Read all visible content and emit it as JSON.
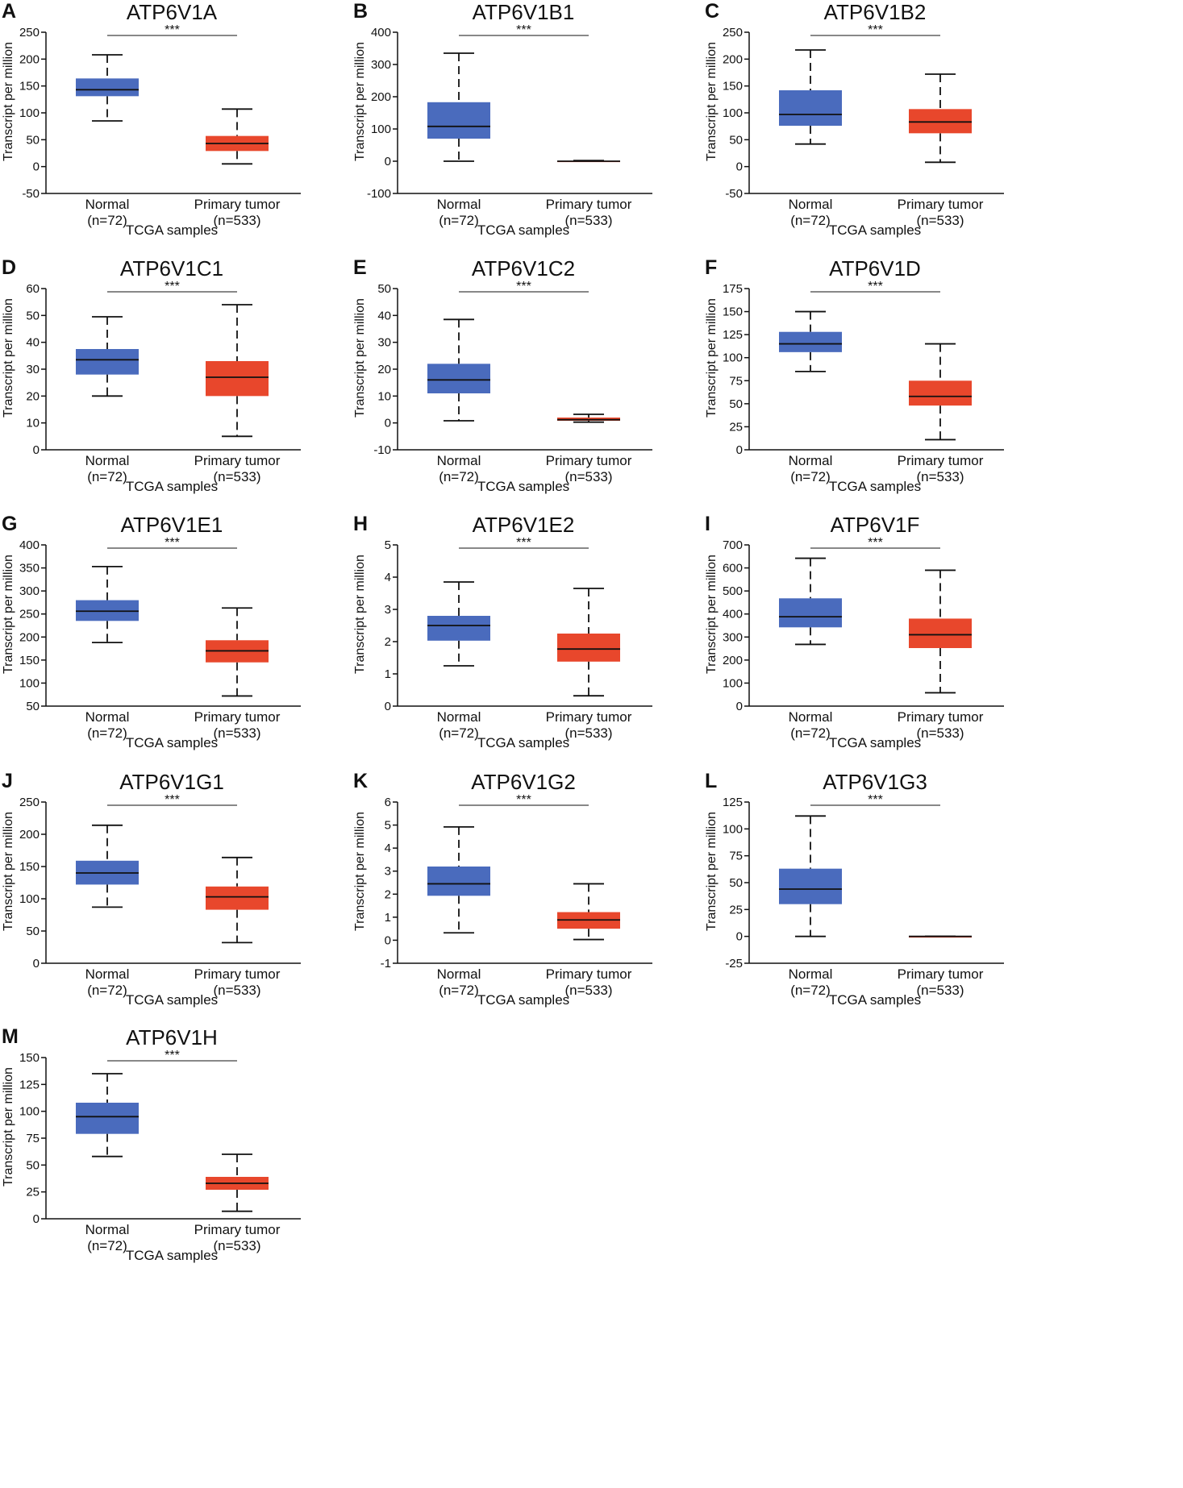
{
  "colors": {
    "normal": "#4a6bbd",
    "tumor": "#e8472c",
    "axis": "#111111"
  },
  "common": {
    "ylabel": "Transcript per million",
    "xlabel": "TCGA samples",
    "significance": "***",
    "categories": [
      {
        "name": "Normal",
        "n": "(n=72)"
      },
      {
        "name": "Primary tumor",
        "n": "(n=533)"
      }
    ]
  },
  "chart_data": [
    {
      "type": "box",
      "panel": "A",
      "title": "ATP6V1A",
      "ylim": [
        -50,
        250
      ],
      "ticks": [
        -50,
        0,
        50,
        100,
        150,
        200,
        250
      ],
      "series": [
        {
          "name": "Normal",
          "whisker_low": 85,
          "q1": 131,
          "median": 143,
          "q3": 164,
          "whisker_high": 208
        },
        {
          "name": "Primary tumor",
          "whisker_low": 5,
          "q1": 29,
          "median": 43,
          "q3": 57,
          "whisker_high": 107
        }
      ]
    },
    {
      "type": "box",
      "panel": "B",
      "title": "ATP6V1B1",
      "ylim": [
        -100,
        400
      ],
      "ticks": [
        -100,
        0,
        100,
        200,
        300,
        400
      ],
      "series": [
        {
          "name": "Normal",
          "whisker_low": 0,
          "q1": 70,
          "median": 108,
          "q3": 183,
          "whisker_high": 335
        },
        {
          "name": "Primary tumor",
          "whisker_low": 0,
          "q1": 0,
          "median": 0,
          "q3": 1,
          "whisker_high": 2
        }
      ]
    },
    {
      "type": "box",
      "panel": "C",
      "title": "ATP6V1B2",
      "ylim": [
        -50,
        250
      ],
      "ticks": [
        -50,
        0,
        50,
        100,
        150,
        200,
        250
      ],
      "series": [
        {
          "name": "Normal",
          "whisker_low": 42,
          "q1": 76,
          "median": 97,
          "q3": 142,
          "whisker_high": 217
        },
        {
          "name": "Primary tumor",
          "whisker_low": 8,
          "q1": 62,
          "median": 83,
          "q3": 107,
          "whisker_high": 172
        }
      ]
    },
    {
      "type": "box",
      "panel": "D",
      "title": "ATP6V1C1",
      "ylim": [
        0,
        60
      ],
      "ticks": [
        0,
        10,
        20,
        30,
        40,
        50,
        60
      ],
      "series": [
        {
          "name": "Normal",
          "whisker_low": 20,
          "q1": 28,
          "median": 33.5,
          "q3": 37.5,
          "whisker_high": 49.5
        },
        {
          "name": "Primary tumor",
          "whisker_low": 5,
          "q1": 20,
          "median": 27,
          "q3": 33,
          "whisker_high": 54
        }
      ]
    },
    {
      "type": "box",
      "panel": "E",
      "title": "ATP6V1C2",
      "ylim": [
        -10,
        50
      ],
      "ticks": [
        -10,
        0,
        10,
        20,
        30,
        40,
        50
      ],
      "series": [
        {
          "name": "Normal",
          "whisker_low": 0.8,
          "q1": 11,
          "median": 16,
          "q3": 22,
          "whisker_high": 38.5
        },
        {
          "name": "Primary tumor",
          "whisker_low": 0.3,
          "q1": 0.8,
          "median": 1.2,
          "q3": 2,
          "whisker_high": 3.2
        }
      ]
    },
    {
      "type": "box",
      "panel": "F",
      "title": "ATP6V1D",
      "ylim": [
        0,
        175
      ],
      "ticks": [
        0,
        25,
        50,
        75,
        100,
        125,
        150,
        175
      ],
      "series": [
        {
          "name": "Normal",
          "whisker_low": 85,
          "q1": 106,
          "median": 115,
          "q3": 128,
          "whisker_high": 150
        },
        {
          "name": "Primary tumor",
          "whisker_low": 11,
          "q1": 48,
          "median": 58,
          "q3": 75,
          "whisker_high": 115
        }
      ]
    },
    {
      "type": "box",
      "panel": "G",
      "title": "ATP6V1E1",
      "ylim": [
        50,
        400
      ],
      "ticks": [
        50,
        100,
        150,
        200,
        250,
        300,
        350,
        400
      ],
      "series": [
        {
          "name": "Normal",
          "whisker_low": 188,
          "q1": 235,
          "median": 256,
          "q3": 280,
          "whisker_high": 353
        },
        {
          "name": "Primary tumor",
          "whisker_low": 72,
          "q1": 145,
          "median": 170,
          "q3": 193,
          "whisker_high": 263
        }
      ]
    },
    {
      "type": "box",
      "panel": "H",
      "title": "ATP6V1E2",
      "ylim": [
        0,
        5
      ],
      "ticks": [
        0,
        1,
        2,
        3,
        4,
        5
      ],
      "series": [
        {
          "name": "Normal",
          "whisker_low": 1.25,
          "q1": 2.03,
          "median": 2.5,
          "q3": 2.8,
          "whisker_high": 3.85
        },
        {
          "name": "Primary tumor",
          "whisker_low": 0.32,
          "q1": 1.38,
          "median": 1.77,
          "q3": 2.25,
          "whisker_high": 3.65
        }
      ]
    },
    {
      "type": "box",
      "panel": "I",
      "title": "ATP6V1F",
      "ylim": [
        0,
        700
      ],
      "ticks": [
        0,
        100,
        200,
        300,
        400,
        500,
        600,
        700
      ],
      "series": [
        {
          "name": "Normal",
          "whisker_low": 268,
          "q1": 342,
          "median": 388,
          "q3": 468,
          "whisker_high": 642
        },
        {
          "name": "Primary tumor",
          "whisker_low": 58,
          "q1": 252,
          "median": 310,
          "q3": 380,
          "whisker_high": 590
        }
      ]
    },
    {
      "type": "box",
      "panel": "J",
      "title": "ATP6V1G1",
      "ylim": [
        0,
        250
      ],
      "ticks": [
        0,
        50,
        100,
        150,
        200,
        250
      ],
      "series": [
        {
          "name": "Normal",
          "whisker_low": 87,
          "q1": 122,
          "median": 140,
          "q3": 159,
          "whisker_high": 214
        },
        {
          "name": "Primary tumor",
          "whisker_low": 32,
          "q1": 83,
          "median": 103,
          "q3": 119,
          "whisker_high": 164
        }
      ]
    },
    {
      "type": "box",
      "panel": "K",
      "title": "ATP6V1G2",
      "ylim": [
        -1,
        6
      ],
      "ticks": [
        -1,
        0,
        1,
        2,
        3,
        4,
        5,
        6
      ],
      "series": [
        {
          "name": "Normal",
          "whisker_low": 0.32,
          "q1": 1.93,
          "median": 2.45,
          "q3": 3.2,
          "whisker_high": 4.92
        },
        {
          "name": "Primary tumor",
          "whisker_low": 0.03,
          "q1": 0.5,
          "median": 0.88,
          "q3": 1.22,
          "whisker_high": 2.45
        }
      ]
    },
    {
      "type": "box",
      "panel": "L",
      "title": "ATP6V1G3",
      "ylim": [
        -25,
        125
      ],
      "ticks": [
        -25,
        0,
        25,
        50,
        75,
        100,
        125
      ],
      "series": [
        {
          "name": "Normal",
          "whisker_low": 0,
          "q1": 30,
          "median": 44,
          "q3": 63,
          "whisker_high": 112
        },
        {
          "name": "Primary tumor",
          "whisker_low": 0,
          "q1": 0,
          "median": 0,
          "q3": 0,
          "whisker_high": 0
        }
      ]
    },
    {
      "type": "box",
      "panel": "M",
      "title": "ATP6V1H",
      "ylim": [
        0,
        150
      ],
      "ticks": [
        0,
        25,
        50,
        75,
        100,
        125,
        150
      ],
      "series": [
        {
          "name": "Normal",
          "whisker_low": 58,
          "q1": 79,
          "median": 95,
          "q3": 108,
          "whisker_high": 135
        },
        {
          "name": "Primary tumor",
          "whisker_low": 7,
          "q1": 27,
          "median": 33,
          "q3": 39,
          "whisker_high": 60
        }
      ]
    }
  ]
}
